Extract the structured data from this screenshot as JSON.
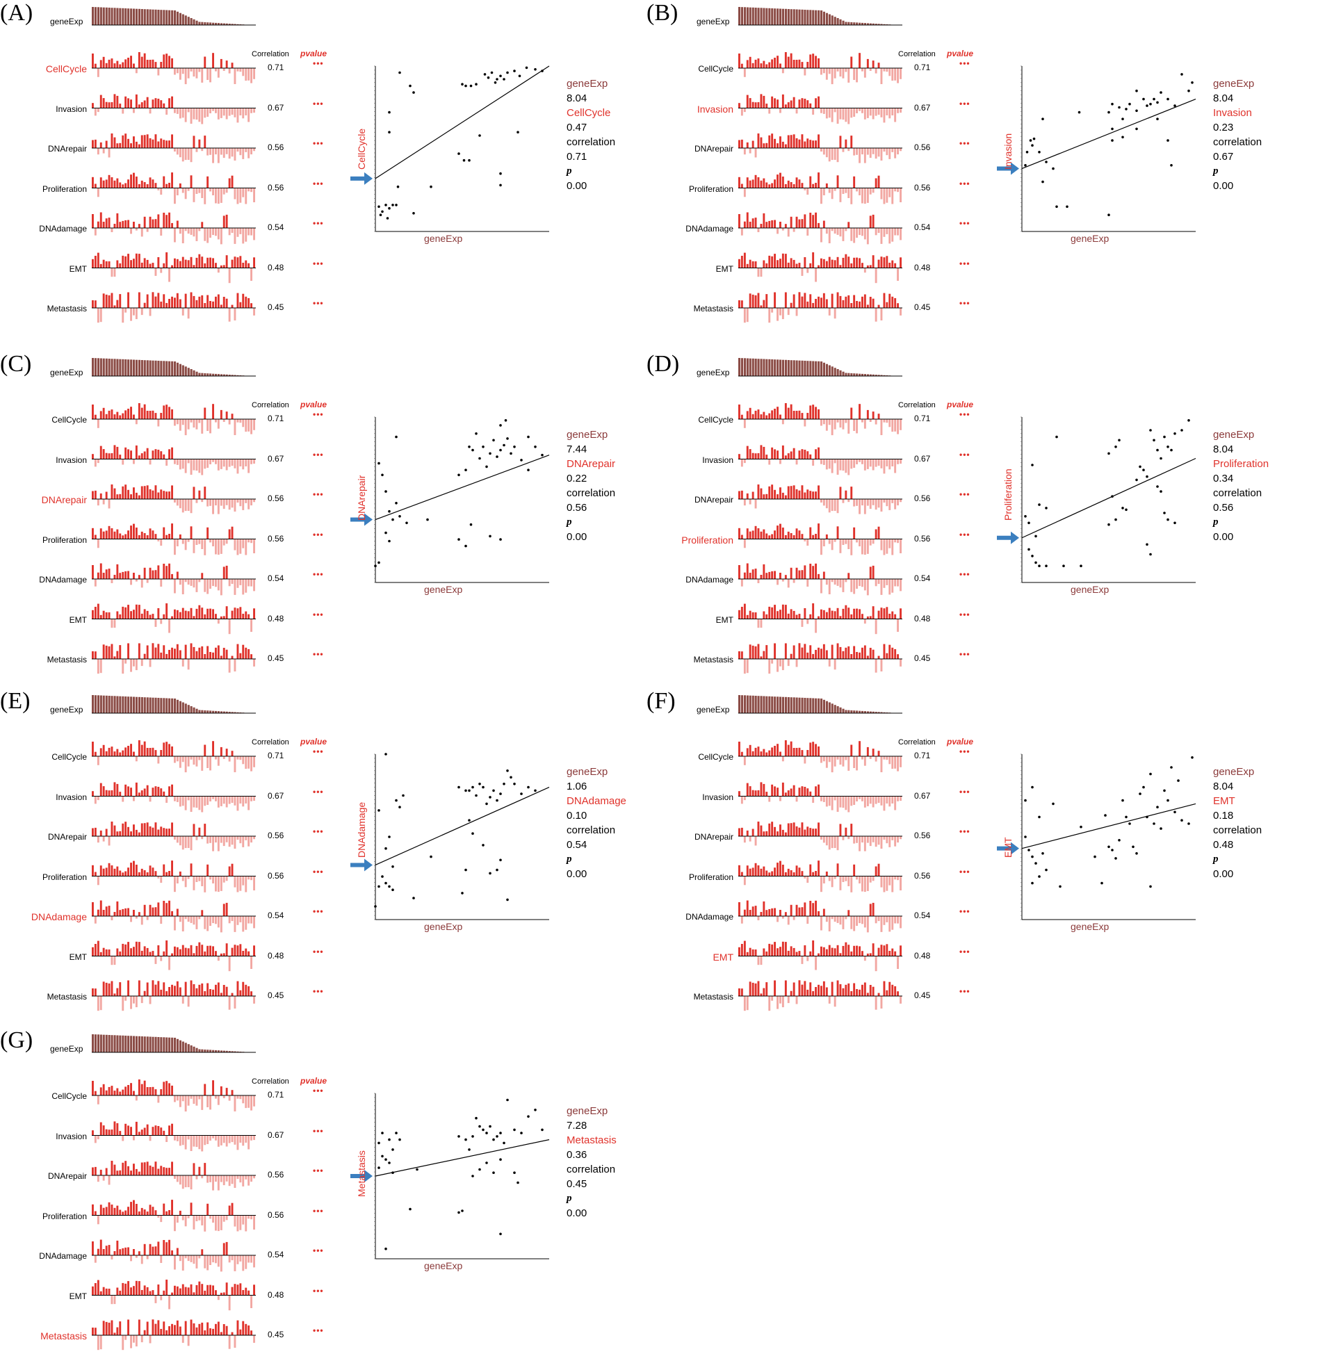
{
  "common": {
    "gene_label": "geneExp",
    "correlation_header": "Correlation",
    "pvalue_header": "pvalue",
    "pvalue_mark": "•••",
    "signatures": [
      "CellCycle",
      "Invasion",
      "DNArepair",
      "Proliferation",
      "DNAdamage",
      "EMT",
      "Metastasis"
    ],
    "correlations": [
      "0.71",
      "0.67",
      "0.56",
      "0.56",
      "0.54",
      "0.48",
      "0.45"
    ],
    "info_labels": {
      "correlation": "correlation",
      "p": "p"
    },
    "colors": {
      "bar_pos": "#e0322b",
      "bar_neg": "#f2a7a2",
      "gene_bars": "#8b4c46",
      "accent": "#e0322b",
      "gene_text": "#8b3a3a",
      "arrow": "#3b7fbf"
    }
  },
  "panels": [
    {
      "letter": "(A)",
      "highlight": 0,
      "info_gene_value": "8.04",
      "info_sig_label": "CellCycle",
      "info_sig_value": "0.47",
      "info_corr": "0.71",
      "info_p": "0.00",
      "x_label": "geneExp",
      "y_label": "CellCycle"
    },
    {
      "letter": "(B)",
      "highlight": 1,
      "info_gene_value": "8.04",
      "info_sig_label": "Invasion",
      "info_sig_value": "0.23",
      "info_corr": "0.67",
      "info_p": "0.00",
      "x_label": "geneExp",
      "y_label": "Invasion"
    },
    {
      "letter": "(C)",
      "highlight": 2,
      "info_gene_value": "7.44",
      "info_sig_label": "DNArepair",
      "info_sig_value": "0.22",
      "info_corr": "0.56",
      "info_p": "0.00",
      "x_label": "geneExp",
      "y_label": "DNArepair"
    },
    {
      "letter": "(D)",
      "highlight": 3,
      "info_gene_value": "8.04",
      "info_sig_label": "Proliferation",
      "info_sig_value": "0.34",
      "info_corr": "0.56",
      "info_p": "0.00",
      "x_label": "geneExp",
      "y_label": "Proliferation"
    },
    {
      "letter": "(E)",
      "highlight": 4,
      "info_gene_value": "1.06",
      "info_sig_label": "DNAdamage",
      "info_sig_value": "0.10",
      "info_corr": "0.54",
      "info_p": "0.00",
      "x_label": "geneExp",
      "y_label": "DNAdamage"
    },
    {
      "letter": "(F)",
      "highlight": 5,
      "info_gene_value": "8.04",
      "info_sig_label": "EMT",
      "info_sig_value": "0.18",
      "info_corr": "0.48",
      "info_p": "0.00",
      "x_label": "geneExp",
      "y_label": "EMT"
    },
    {
      "letter": "(G)",
      "highlight": 6,
      "info_gene_value": "7.28",
      "info_sig_label": "Metastasis",
      "info_sig_value": "0.36",
      "info_corr": "0.45",
      "info_p": "0.00",
      "x_label": "geneExp",
      "y_label": "Metastasis"
    }
  ],
  "chart_data": [
    {
      "type": "scatter",
      "panel": "(A)",
      "xlabel": "geneExp",
      "ylabel": "CellCycle",
      "correlation": 0.71,
      "p": 0.0,
      "trend": {
        "x0": 0,
        "y0": 0.32,
        "x1": 1,
        "y1": 1.0
      },
      "points": [
        [
          0.14,
          0.96
        ],
        [
          0.2,
          0.88
        ],
        [
          0.22,
          0.84
        ],
        [
          0.08,
          0.72
        ],
        [
          0.08,
          0.6
        ],
        [
          0.5,
          0.89
        ],
        [
          0.52,
          0.88
        ],
        [
          0.55,
          0.88
        ],
        [
          0.58,
          0.89
        ],
        [
          0.63,
          0.95
        ],
        [
          0.65,
          0.93
        ],
        [
          0.67,
          0.96
        ],
        [
          0.69,
          0.9
        ],
        [
          0.7,
          0.92
        ],
        [
          0.72,
          0.94
        ],
        [
          0.74,
          0.92
        ],
        [
          0.76,
          0.96
        ],
        [
          0.8,
          0.97
        ],
        [
          0.83,
          0.94
        ],
        [
          0.87,
          0.99
        ],
        [
          0.92,
          0.98
        ],
        [
          0.96,
          0.97
        ],
        [
          0.6,
          0.58
        ],
        [
          0.48,
          0.47
        ],
        [
          0.51,
          0.43
        ],
        [
          0.54,
          0.43
        ],
        [
          0.72,
          0.35
        ],
        [
          0.72,
          0.28
        ],
        [
          0.82,
          0.6
        ],
        [
          0.32,
          0.27
        ],
        [
          0.13,
          0.27
        ],
        [
          0.02,
          0.15
        ],
        [
          0.04,
          0.12
        ],
        [
          0.06,
          0.16
        ],
        [
          0.08,
          0.14
        ],
        [
          0.1,
          0.16
        ],
        [
          0.12,
          0.16
        ],
        [
          0.07,
          0.08
        ],
        [
          0.03,
          0.1
        ],
        [
          0.22,
          0.11
        ]
      ]
    },
    {
      "type": "scatter",
      "panel": "(B)",
      "xlabel": "geneExp",
      "ylabel": "Invasion",
      "correlation": 0.67,
      "p": 0.0,
      "trend": {
        "x0": 0,
        "y0": 0.38,
        "x1": 1,
        "y1": 0.8
      },
      "points": [
        [
          0.05,
          0.55
        ],
        [
          0.07,
          0.56
        ],
        [
          0.12,
          0.68
        ],
        [
          0.06,
          0.52
        ],
        [
          0.1,
          0.48
        ],
        [
          0.14,
          0.42
        ],
        [
          0.18,
          0.38
        ],
        [
          0.12,
          0.3
        ],
        [
          0.2,
          0.15
        ],
        [
          0.26,
          0.15
        ],
        [
          0.33,
          0.72
        ],
        [
          0.5,
          0.72
        ],
        [
          0.52,
          0.77
        ],
        [
          0.52,
          0.62
        ],
        [
          0.52,
          0.55
        ],
        [
          0.56,
          0.75
        ],
        [
          0.58,
          0.68
        ],
        [
          0.6,
          0.74
        ],
        [
          0.62,
          0.77
        ],
        [
          0.66,
          0.85
        ],
        [
          0.66,
          0.73
        ],
        [
          0.7,
          0.8
        ],
        [
          0.72,
          0.76
        ],
        [
          0.74,
          0.77
        ],
        [
          0.76,
          0.8
        ],
        [
          0.78,
          0.78
        ],
        [
          0.8,
          0.84
        ],
        [
          0.84,
          0.8
        ],
        [
          0.88,
          0.76
        ],
        [
          0.92,
          0.95
        ],
        [
          0.96,
          0.85
        ],
        [
          0.98,
          0.9
        ],
        [
          0.78,
          0.68
        ],
        [
          0.84,
          0.55
        ],
        [
          0.86,
          0.4
        ],
        [
          0.58,
          0.57
        ],
        [
          0.66,
          0.62
        ],
        [
          0.5,
          0.1
        ],
        [
          0.03,
          0.48
        ],
        [
          0.02,
          0.4
        ]
      ]
    },
    {
      "type": "scatter",
      "panel": "(C)",
      "xlabel": "geneExp",
      "ylabel": "DNArepair",
      "correlation": 0.56,
      "p": 0.0,
      "trend": {
        "x0": 0,
        "y0": 0.38,
        "x1": 1,
        "y1": 0.77
      },
      "points": [
        [
          0.02,
          0.72
        ],
        [
          0.04,
          0.65
        ],
        [
          0.06,
          0.55
        ],
        [
          0.12,
          0.88
        ],
        [
          0.1,
          0.38
        ],
        [
          0.14,
          0.4
        ],
        [
          0.08,
          0.43
        ],
        [
          0.12,
          0.48
        ],
        [
          0.06,
          0.3
        ],
        [
          0.08,
          0.25
        ],
        [
          0.18,
          0.36
        ],
        [
          0.3,
          0.38
        ],
        [
          0.02,
          0.12
        ],
        [
          0.0,
          0.1
        ],
        [
          0.48,
          0.65
        ],
        [
          0.52,
          0.68
        ],
        [
          0.54,
          0.82
        ],
        [
          0.56,
          0.8
        ],
        [
          0.58,
          0.9
        ],
        [
          0.6,
          0.75
        ],
        [
          0.62,
          0.82
        ],
        [
          0.64,
          0.7
        ],
        [
          0.66,
          0.78
        ],
        [
          0.68,
          0.86
        ],
        [
          0.7,
          0.76
        ],
        [
          0.72,
          0.8
        ],
        [
          0.74,
          0.83
        ],
        [
          0.76,
          0.87
        ],
        [
          0.78,
          0.78
        ],
        [
          0.8,
          0.82
        ],
        [
          0.84,
          0.74
        ],
        [
          0.88,
          0.88
        ],
        [
          0.92,
          0.82
        ],
        [
          0.96,
          0.77
        ],
        [
          0.72,
          0.95
        ],
        [
          0.75,
          0.98
        ],
        [
          0.88,
          0.68
        ],
        [
          0.55,
          0.35
        ],
        [
          0.48,
          0.26
        ],
        [
          0.52,
          0.22
        ],
        [
          0.66,
          0.28
        ],
        [
          0.72,
          0.26
        ]
      ]
    },
    {
      "type": "scatter",
      "panel": "(D)",
      "xlabel": "geneExp",
      "ylabel": "Proliferation",
      "correlation": 0.56,
      "p": 0.0,
      "trend": {
        "x0": 0,
        "y0": 0.27,
        "x1": 1,
        "y1": 0.75
      },
      "points": [
        [
          0.2,
          0.88
        ],
        [
          0.06,
          0.71
        ],
        [
          0.1,
          0.47
        ],
        [
          0.14,
          0.45
        ],
        [
          0.02,
          0.4
        ],
        [
          0.04,
          0.36
        ],
        [
          0.08,
          0.28
        ],
        [
          0.04,
          0.2
        ],
        [
          0.06,
          0.16
        ],
        [
          0.08,
          0.12
        ],
        [
          0.1,
          0.1
        ],
        [
          0.14,
          0.1
        ],
        [
          0.24,
          0.1
        ],
        [
          0.34,
          0.1
        ],
        [
          0.5,
          0.78
        ],
        [
          0.54,
          0.82
        ],
        [
          0.56,
          0.86
        ],
        [
          0.52,
          0.52
        ],
        [
          0.6,
          0.44
        ],
        [
          0.66,
          0.62
        ],
        [
          0.68,
          0.7
        ],
        [
          0.7,
          0.68
        ],
        [
          0.72,
          0.64
        ],
        [
          0.74,
          0.92
        ],
        [
          0.76,
          0.86
        ],
        [
          0.78,
          0.8
        ],
        [
          0.8,
          0.75
        ],
        [
          0.82,
          0.88
        ],
        [
          0.84,
          0.82
        ],
        [
          0.86,
          0.8
        ],
        [
          0.88,
          0.9
        ],
        [
          0.92,
          0.92
        ],
        [
          0.96,
          0.98
        ],
        [
          0.78,
          0.58
        ],
        [
          0.8,
          0.55
        ],
        [
          0.82,
          0.42
        ],
        [
          0.84,
          0.38
        ],
        [
          0.88,
          0.36
        ],
        [
          0.72,
          0.23
        ],
        [
          0.74,
          0.17
        ],
        [
          0.5,
          0.35
        ],
        [
          0.54,
          0.38
        ],
        [
          0.58,
          0.45
        ]
      ]
    },
    {
      "type": "scatter",
      "panel": "(E)",
      "xlabel": "geneExp",
      "ylabel": "DNAdamage",
      "correlation": 0.54,
      "p": 0.0,
      "trend": {
        "x0": 0,
        "y0": 0.33,
        "x1": 1,
        "y1": 0.8
      },
      "points": [
        [
          0.06,
          1.0
        ],
        [
          0.12,
          0.72
        ],
        [
          0.14,
          0.68
        ],
        [
          0.16,
          0.75
        ],
        [
          0.02,
          0.66
        ],
        [
          0.08,
          0.5
        ],
        [
          0.06,
          0.43
        ],
        [
          0.1,
          0.32
        ],
        [
          0.04,
          0.26
        ],
        [
          0.06,
          0.22
        ],
        [
          0.02,
          0.2
        ],
        [
          0.08,
          0.2
        ],
        [
          0.1,
          0.18
        ],
        [
          0.22,
          0.13
        ],
        [
          0.32,
          0.38
        ],
        [
          0.0,
          0.08
        ],
        [
          0.48,
          0.8
        ],
        [
          0.52,
          0.78
        ],
        [
          0.54,
          0.78
        ],
        [
          0.56,
          0.8
        ],
        [
          0.58,
          0.75
        ],
        [
          0.6,
          0.82
        ],
        [
          0.62,
          0.8
        ],
        [
          0.64,
          0.7
        ],
        [
          0.66,
          0.74
        ],
        [
          0.68,
          0.78
        ],
        [
          0.7,
          0.72
        ],
        [
          0.72,
          0.76
        ],
        [
          0.74,
          0.82
        ],
        [
          0.76,
          0.9
        ],
        [
          0.78,
          0.86
        ],
        [
          0.8,
          0.82
        ],
        [
          0.84,
          0.76
        ],
        [
          0.88,
          0.8
        ],
        [
          0.92,
          0.78
        ],
        [
          0.54,
          0.6
        ],
        [
          0.56,
          0.52
        ],
        [
          0.62,
          0.45
        ],
        [
          0.66,
          0.28
        ],
        [
          0.7,
          0.3
        ],
        [
          0.72,
          0.36
        ],
        [
          0.52,
          0.3
        ],
        [
          0.5,
          0.16
        ],
        [
          0.76,
          0.12
        ]
      ]
    },
    {
      "type": "scatter",
      "panel": "(F)",
      "xlabel": "geneExp",
      "ylabel": "EMT",
      "correlation": 0.48,
      "p": 0.0,
      "trend": {
        "x0": 0,
        "y0": 0.43,
        "x1": 1,
        "y1": 0.7
      },
      "points": [
        [
          0.02,
          0.72
        ],
        [
          0.06,
          0.8
        ],
        [
          0.1,
          0.62
        ],
        [
          0.18,
          0.7
        ],
        [
          0.02,
          0.5
        ],
        [
          0.04,
          0.42
        ],
        [
          0.06,
          0.38
        ],
        [
          0.08,
          0.34
        ],
        [
          0.12,
          0.4
        ],
        [
          0.14,
          0.3
        ],
        [
          0.06,
          0.22
        ],
        [
          0.1,
          0.26
        ],
        [
          0.22,
          0.2
        ],
        [
          0.46,
          0.22
        ],
        [
          0.34,
          0.56
        ],
        [
          0.48,
          0.63
        ],
        [
          0.5,
          0.44
        ],
        [
          0.52,
          0.42
        ],
        [
          0.54,
          0.37
        ],
        [
          0.56,
          0.48
        ],
        [
          0.58,
          0.72
        ],
        [
          0.6,
          0.62
        ],
        [
          0.62,
          0.58
        ],
        [
          0.64,
          0.44
        ],
        [
          0.66,
          0.4
        ],
        [
          0.68,
          0.76
        ],
        [
          0.7,
          0.8
        ],
        [
          0.72,
          0.62
        ],
        [
          0.74,
          0.88
        ],
        [
          0.76,
          0.58
        ],
        [
          0.78,
          0.68
        ],
        [
          0.8,
          0.55
        ],
        [
          0.82,
          0.78
        ],
        [
          0.84,
          0.72
        ],
        [
          0.86,
          0.92
        ],
        [
          0.88,
          0.65
        ],
        [
          0.9,
          0.84
        ],
        [
          0.92,
          0.6
        ],
        [
          0.96,
          0.58
        ],
        [
          0.98,
          0.98
        ],
        [
          0.74,
          0.2
        ],
        [
          0.42,
          0.38
        ]
      ]
    },
    {
      "type": "scatter",
      "panel": "(G)",
      "xlabel": "geneExp",
      "ylabel": "Metastasis",
      "correlation": 0.45,
      "p": 0.0,
      "trend": {
        "x0": 0,
        "y0": 0.5,
        "x1": 1,
        "y1": 0.72
      },
      "points": [
        [
          0.04,
          0.76
        ],
        [
          0.08,
          0.72
        ],
        [
          0.1,
          0.66
        ],
        [
          0.12,
          0.76
        ],
        [
          0.14,
          0.72
        ],
        [
          0.02,
          0.7
        ],
        [
          0.06,
          0.6
        ],
        [
          0.08,
          0.58
        ],
        [
          0.04,
          0.62
        ],
        [
          0.1,
          0.52
        ],
        [
          0.02,
          0.55
        ],
        [
          0.24,
          0.54
        ],
        [
          0.2,
          0.3
        ],
        [
          0.06,
          0.06
        ],
        [
          0.48,
          0.74
        ],
        [
          0.52,
          0.72
        ],
        [
          0.54,
          0.66
        ],
        [
          0.56,
          0.74
        ],
        [
          0.58,
          0.85
        ],
        [
          0.6,
          0.8
        ],
        [
          0.62,
          0.78
        ],
        [
          0.64,
          0.76
        ],
        [
          0.66,
          0.8
        ],
        [
          0.68,
          0.72
        ],
        [
          0.7,
          0.74
        ],
        [
          0.72,
          0.76
        ],
        [
          0.74,
          0.7
        ],
        [
          0.76,
          0.96
        ],
        [
          0.8,
          0.78
        ],
        [
          0.84,
          0.76
        ],
        [
          0.88,
          0.86
        ],
        [
          0.92,
          0.9
        ],
        [
          0.96,
          0.78
        ],
        [
          0.56,
          0.5
        ],
        [
          0.6,
          0.54
        ],
        [
          0.64,
          0.58
        ],
        [
          0.68,
          0.52
        ],
        [
          0.72,
          0.6
        ],
        [
          0.8,
          0.52
        ],
        [
          0.82,
          0.46
        ],
        [
          0.48,
          0.28
        ],
        [
          0.5,
          0.29
        ],
        [
          0.72,
          0.15
        ]
      ]
    }
  ]
}
